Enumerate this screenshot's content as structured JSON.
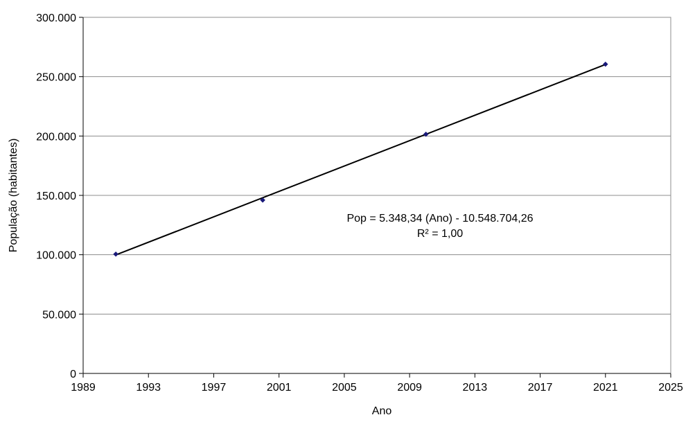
{
  "chart_data": {
    "type": "scatter",
    "title": "",
    "xlabel": "Ano",
    "ylabel": "População (habitantes)",
    "xlim": [
      1989,
      2025
    ],
    "ylim": [
      0,
      300000
    ],
    "x_ticks": [
      1989,
      1993,
      1997,
      2001,
      2005,
      2009,
      2013,
      2017,
      2021,
      2025
    ],
    "x_tick_labels": [
      "1989",
      "1993",
      "1997",
      "2001",
      "2005",
      "2009",
      "2013",
      "2017",
      "2021",
      "2025"
    ],
    "y_ticks": [
      0,
      50000,
      100000,
      150000,
      200000,
      250000,
      300000
    ],
    "y_tick_labels": [
      "0",
      "50.000",
      "100.000",
      "150.000",
      "200.000",
      "250.000",
      "300.000"
    ],
    "grid": "horizontal",
    "series": [
      {
        "x": [
          1991,
          2000,
          2010,
          2021
        ],
        "y": [
          100500,
          146000,
          201500,
          260500
        ],
        "color": "#1a1a7a",
        "marker": "diamond"
      }
    ],
    "trendline": {
      "x_range": [
        1991,
        2021
      ],
      "slope": 5348.34,
      "intercept": -10548704.26,
      "color": "#000000"
    },
    "annotation": {
      "line1": "Pop = 5.348,34 (Ano) - 10.548.704,26",
      "line2": "R² = 1,00"
    }
  }
}
